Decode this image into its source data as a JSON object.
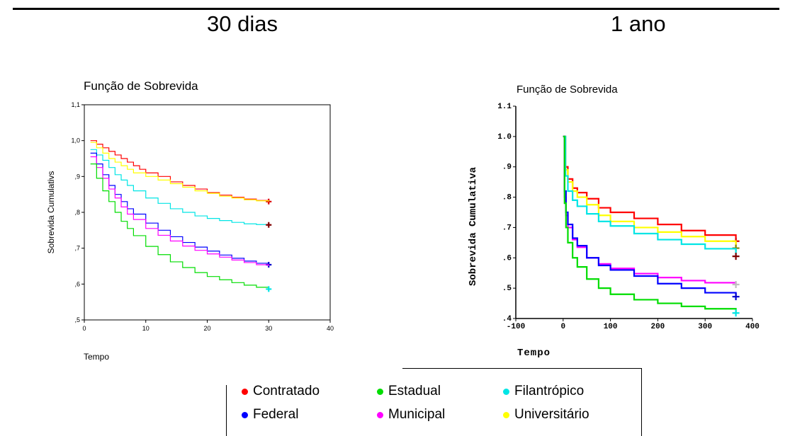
{
  "panels": {
    "left_title": "30 dias",
    "right_title": "1 ano"
  },
  "legend": {
    "items": [
      {
        "label": "Contratado",
        "color": "#ff0000"
      },
      {
        "label": "Estadual",
        "color": "#00dd00"
      },
      {
        "label": "Filantrópico",
        "color": "#00e5e5"
      },
      {
        "label": "Federal",
        "color": "#0000ff"
      },
      {
        "label": "Municipal",
        "color": "#ff00ff"
      },
      {
        "label": "Universitário",
        "color": "#ffff00"
      }
    ]
  },
  "chart_data": [
    {
      "type": "line",
      "step": true,
      "title": "Função de Sobrevida",
      "xlabel": "Tempo",
      "ylabel": "Sobrevida Cumulativs",
      "xlim": [
        0,
        40
      ],
      "ylim": [
        0.5,
        1.1
      ],
      "xticks": [
        0,
        10,
        20,
        30,
        40
      ],
      "xtick_labels": [
        "0",
        "10",
        "20",
        "30",
        "40"
      ],
      "yticks": [
        0.5,
        0.6,
        0.7,
        0.8,
        0.9,
        1.0,
        1.1
      ],
      "ytick_labels": [
        ",5",
        ",6",
        ",7",
        ",8",
        ",9",
        "1,0",
        "1,1"
      ],
      "grid": false,
      "series": [
        {
          "name": "Contratado",
          "color": "#ff0000",
          "x": [
            1,
            2,
            3,
            4,
            5,
            6,
            7,
            8,
            9,
            10,
            12,
            14,
            16,
            18,
            20,
            22,
            24,
            26,
            28,
            30
          ],
          "y": [
            1.0,
            0.99,
            0.98,
            0.97,
            0.96,
            0.95,
            0.94,
            0.93,
            0.92,
            0.91,
            0.9,
            0.885,
            0.875,
            0.865,
            0.855,
            0.848,
            0.842,
            0.837,
            0.833,
            0.83
          ],
          "censor": {
            "x": 30,
            "y": 0.83,
            "color": "#dd0000"
          }
        },
        {
          "name": "Universitário",
          "color": "#ffff00",
          "x": [
            1,
            2,
            3,
            4,
            5,
            6,
            7,
            8,
            10,
            12,
            14,
            16,
            18,
            20,
            22,
            24,
            26,
            28,
            30
          ],
          "y": [
            0.995,
            0.98,
            0.965,
            0.95,
            0.94,
            0.93,
            0.92,
            0.91,
            0.9,
            0.89,
            0.88,
            0.87,
            0.86,
            0.853,
            0.845,
            0.84,
            0.835,
            0.832,
            0.83
          ],
          "censor": null
        },
        {
          "name": "Filantrópico",
          "color": "#00e5e5",
          "x": [
            1,
            2,
            3,
            4,
            5,
            6,
            7,
            8,
            10,
            12,
            14,
            16,
            18,
            20,
            22,
            24,
            26,
            28,
            30
          ],
          "y": [
            0.975,
            0.96,
            0.945,
            0.925,
            0.905,
            0.89,
            0.875,
            0.86,
            0.84,
            0.825,
            0.81,
            0.8,
            0.79,
            0.783,
            0.777,
            0.772,
            0.768,
            0.766,
            0.765
          ],
          "censor": {
            "x": 30,
            "y": 0.765,
            "color": "#800000"
          }
        },
        {
          "name": "Federal",
          "color": "#0000ff",
          "x": [
            1,
            2,
            3,
            4,
            5,
            6,
            7,
            8,
            10,
            12,
            14,
            16,
            18,
            20,
            22,
            24,
            26,
            28,
            30
          ],
          "y": [
            0.965,
            0.935,
            0.905,
            0.875,
            0.85,
            0.83,
            0.81,
            0.795,
            0.77,
            0.75,
            0.732,
            0.716,
            0.703,
            0.692,
            0.681,
            0.672,
            0.664,
            0.658,
            0.654
          ],
          "censor": {
            "x": 30,
            "y": 0.654,
            "color": "#0000cc"
          }
        },
        {
          "name": "Municipal",
          "color": "#ff00ff",
          "x": [
            1,
            2,
            3,
            4,
            5,
            6,
            7,
            8,
            10,
            12,
            14,
            16,
            18,
            20,
            22,
            24,
            26,
            28,
            30
          ],
          "y": [
            0.955,
            0.925,
            0.895,
            0.865,
            0.84,
            0.815,
            0.795,
            0.78,
            0.755,
            0.736,
            0.72,
            0.706,
            0.694,
            0.684,
            0.675,
            0.667,
            0.66,
            0.654,
            0.65
          ],
          "censor": null
        },
        {
          "name": "Estadual",
          "color": "#00dd00",
          "x": [
            1,
            2,
            3,
            4,
            5,
            6,
            7,
            8,
            10,
            12,
            14,
            16,
            18,
            20,
            22,
            24,
            26,
            28,
            30
          ],
          "y": [
            0.935,
            0.895,
            0.86,
            0.83,
            0.8,
            0.775,
            0.755,
            0.735,
            0.705,
            0.682,
            0.662,
            0.646,
            0.632,
            0.621,
            0.612,
            0.604,
            0.597,
            0.591,
            0.586
          ],
          "censor": {
            "x": 30,
            "y": 0.586,
            "color": "#00e5e5"
          }
        }
      ]
    },
    {
      "type": "line",
      "step": true,
      "title": "Função de Sobrevida",
      "xlabel": "Tempo",
      "ylabel": "Sobrevida Cumulativa",
      "xlim": [
        -100,
        400
      ],
      "ylim": [
        0.4,
        1.1
      ],
      "xticks": [
        -100,
        0,
        100,
        200,
        300,
        400
      ],
      "xtick_labels": [
        "-100",
        "0",
        "100",
        "200",
        "300",
        "400"
      ],
      "yticks": [
        0.4,
        0.5,
        0.6,
        0.7,
        0.8,
        0.9,
        1.0,
        1.1
      ],
      "ytick_labels": [
        ".4",
        ".5",
        ".6",
        ".7",
        ".8",
        ".9",
        "1.0",
        "1.1"
      ],
      "grid": false,
      "series": [
        {
          "name": "Contratado",
          "color": "#ff0000",
          "x": [
            0,
            5,
            10,
            20,
            30,
            50,
            75,
            100,
            150,
            200,
            250,
            300,
            365
          ],
          "y": [
            1.0,
            0.9,
            0.86,
            0.83,
            0.815,
            0.795,
            0.765,
            0.75,
            0.73,
            0.71,
            0.69,
            0.675,
            0.655
          ],
          "censor": {
            "x": 365,
            "y": 0.655,
            "color": "#dd0000"
          }
        },
        {
          "name": "Universitário",
          "color": "#ffff00",
          "x": [
            0,
            5,
            10,
            20,
            30,
            50,
            75,
            100,
            150,
            200,
            250,
            300,
            365
          ],
          "y": [
            1.0,
            0.89,
            0.85,
            0.82,
            0.8,
            0.775,
            0.74,
            0.72,
            0.7,
            0.685,
            0.67,
            0.655,
            0.632
          ],
          "censor": {
            "x": 365,
            "y": 0.632,
            "color": "#808000"
          }
        },
        {
          "name": "Filantrópico",
          "color": "#00e5e5",
          "x": [
            0,
            5,
            10,
            20,
            30,
            50,
            75,
            100,
            150,
            200,
            250,
            300,
            365
          ],
          "y": [
            1.0,
            0.87,
            0.82,
            0.79,
            0.77,
            0.745,
            0.72,
            0.705,
            0.68,
            0.66,
            0.645,
            0.63,
            0.605
          ],
          "censor": {
            "x": 365,
            "y": 0.605,
            "color": "#800000"
          }
        },
        {
          "name": "Municipal",
          "color": "#ff00ff",
          "x": [
            0,
            3,
            6,
            10,
            20,
            30,
            50,
            75,
            100,
            150,
            200,
            250,
            300,
            365
          ],
          "y": [
            1.0,
            0.8,
            0.74,
            0.7,
            0.66,
            0.635,
            0.6,
            0.58,
            0.565,
            0.548,
            0.535,
            0.525,
            0.518,
            0.512
          ],
          "censor": {
            "x": 365,
            "y": 0.512,
            "color": "#c0c0c0"
          }
        },
        {
          "name": "Federal",
          "color": "#0000ff",
          "x": [
            0,
            3,
            6,
            10,
            20,
            30,
            50,
            75,
            100,
            150,
            200,
            250,
            300,
            365
          ],
          "y": [
            1.0,
            0.82,
            0.75,
            0.71,
            0.665,
            0.64,
            0.6,
            0.575,
            0.56,
            0.54,
            0.515,
            0.5,
            0.485,
            0.472
          ],
          "censor": {
            "x": 365,
            "y": 0.472,
            "color": "#0000cc"
          }
        },
        {
          "name": "Estadual",
          "color": "#00dd00",
          "x": [
            0,
            3,
            6,
            10,
            20,
            30,
            50,
            75,
            100,
            150,
            200,
            250,
            300,
            365
          ],
          "y": [
            1.0,
            0.78,
            0.7,
            0.65,
            0.6,
            0.57,
            0.53,
            0.5,
            0.48,
            0.462,
            0.45,
            0.44,
            0.432,
            0.418
          ],
          "censor": {
            "x": 365,
            "y": 0.418,
            "color": "#00e5e5"
          }
        }
      ]
    }
  ]
}
